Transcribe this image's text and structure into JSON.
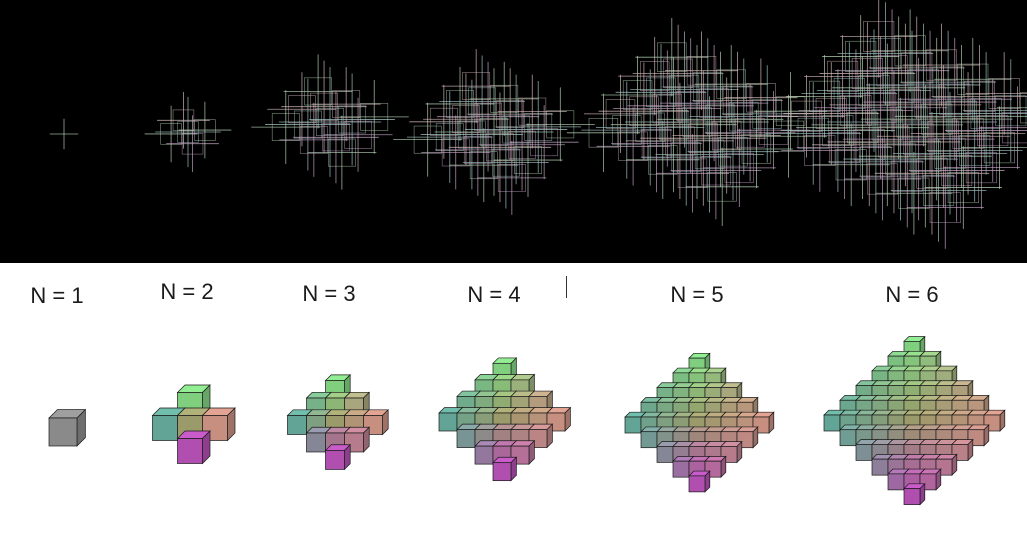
{
  "figure": {
    "panels": [
      {
        "label": "N = 1",
        "n": 1
      },
      {
        "label": "N = 2",
        "n": 2
      },
      {
        "label": "N = 3",
        "n": 3
      },
      {
        "label": "N = 4",
        "n": 4
      },
      {
        "label": "N = 5",
        "n": 5
      },
      {
        "label": "N = 6",
        "n": 6
      }
    ],
    "colors": {
      "top_background": "#000000",
      "bottom_background": "#ffffff",
      "wire_line": "#cfcfcf",
      "cube_n1": "#8a8a8a",
      "top_tint": "#7fcf7f",
      "left_tint": "#4aa9a9",
      "right_tint": "#d98a8a",
      "bottom_tint": "#b04fb0",
      "center_tint": "#9a9a6a"
    }
  }
}
